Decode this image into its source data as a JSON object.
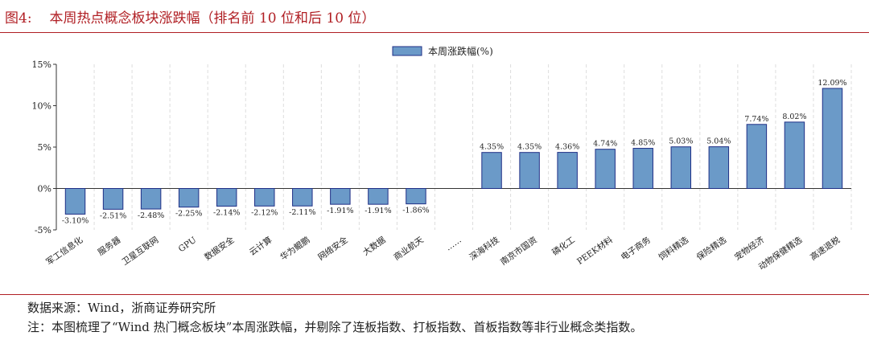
{
  "figure": {
    "label": "图4:",
    "title": "本周热点概念板块涨跌幅（排名前 10 位和后 10 位）"
  },
  "chart_data": {
    "type": "bar",
    "legend": {
      "label": "本周涨跌幅(%)",
      "placement": "top-center"
    },
    "categories": [
      "军工信息化",
      "服务器",
      "卫星互联网",
      "GPU",
      "数据安全",
      "云计算",
      "华为鲲鹏",
      "网络安全",
      "大数据",
      "商业航天",
      "……",
      "深海科技",
      "南京市国资",
      "磷化工",
      "PEEK材料",
      "电子商务",
      "饲料精选",
      "保险精选",
      "宠物经济",
      "动物保健精选",
      "高速退税"
    ],
    "values": [
      -3.1,
      -2.51,
      -2.48,
      -2.25,
      -2.14,
      -2.12,
      -2.11,
      -1.91,
      -1.91,
      -1.86,
      null,
      4.35,
      4.35,
      4.36,
      4.74,
      4.85,
      5.03,
      5.04,
      7.74,
      8.02,
      12.09
    ],
    "data_labels": [
      "-3.10%",
      "-2.51%",
      "-2.48%",
      "-2.25%",
      "-2.14%",
      "-2.12%",
      "-2.11%",
      "-1.91%",
      "-1.91%",
      "-1.86%",
      "",
      "4.35%",
      "4.35%",
      "4.36%",
      "4.74%",
      "4.85%",
      "5.03%",
      "5.04%",
      "7.74%",
      "8.02%",
      "12.09%"
    ],
    "y_ticks": [
      15,
      10,
      5,
      0,
      -5
    ],
    "y_tick_labels": [
      "15%",
      "10%",
      "5%",
      "0%",
      "-5%"
    ],
    "ylim": [
      -5,
      15
    ],
    "grid": "vertical-dashed",
    "colors": {
      "bar_fill": "#6b9ac8",
      "bar_stroke": "#1f2f86",
      "axis": "#333333",
      "grid": "#dddddd"
    }
  },
  "footer": {
    "source": "数据来源：Wind，浙商证券研究所",
    "note": "注：本图梳理了“Wind 热门概念板块”本周涨跌幅，并剔除了连板指数、打板指数、首板指数等非行业概念类指数。"
  }
}
